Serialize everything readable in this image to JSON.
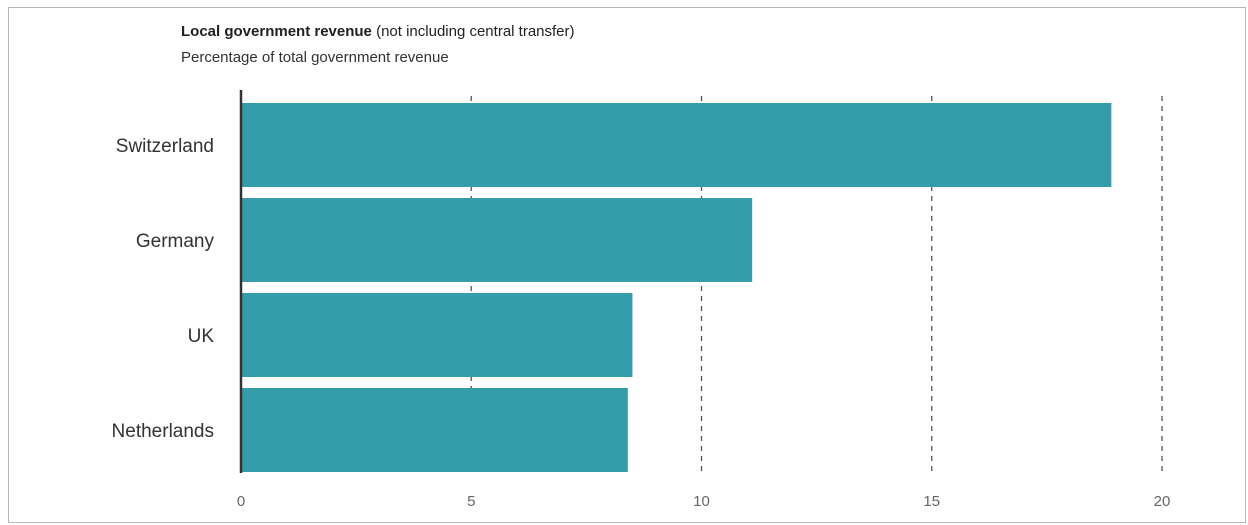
{
  "chart_data": {
    "type": "bar",
    "orientation": "horizontal",
    "title": "Local government revenue",
    "title_suffix": "(not including central transfer)",
    "subtitle": "Percentage of total government revenue",
    "categories": [
      "Switzerland",
      "Germany",
      "UK",
      "Netherlands"
    ],
    "values": [
      18.9,
      11.1,
      8.5,
      8.4
    ],
    "xlim": [
      0,
      20
    ],
    "xticks": [
      0,
      5,
      10,
      15,
      20
    ],
    "grid": "vertical dashed",
    "legend": "none",
    "colors": {
      "bar": "#359ca9",
      "axis": "#333333",
      "grid": "#555555"
    }
  }
}
